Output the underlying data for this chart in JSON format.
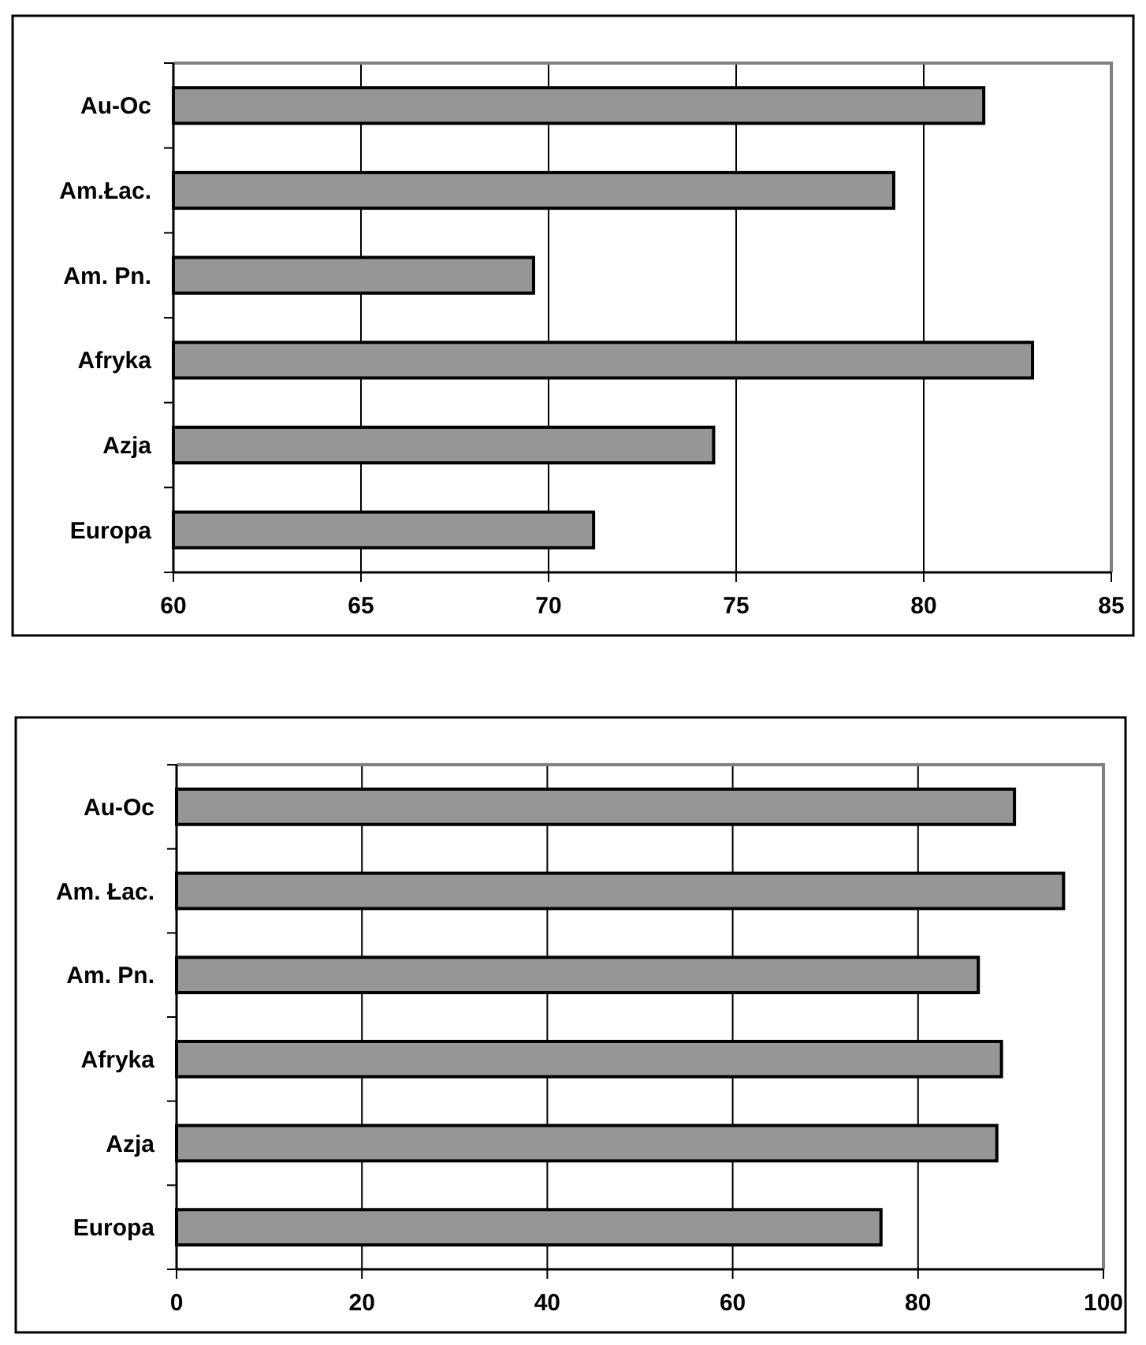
{
  "chart_data": [
    {
      "type": "bar",
      "orientation": "horizontal",
      "categories": [
        "Au-Oc",
        "Am.Łac.",
        "Am. Pn.",
        "Afryka",
        "Azja",
        "Europa"
      ],
      "values": [
        81.6,
        79.2,
        69.6,
        82.9,
        74.4,
        71.2
      ],
      "color": "#969696",
      "xlim": [
        60,
        85
      ],
      "xticks": [
        60,
        65,
        70,
        75,
        80,
        85
      ],
      "grid": "x"
    },
    {
      "type": "bar",
      "orientation": "horizontal",
      "categories": [
        "Au-Oc",
        "Am. Łac.",
        "Am. Pn.",
        "Afryka",
        "Azja",
        "Europa"
      ],
      "values": [
        90.4,
        95.7,
        86.5,
        89.0,
        88.5,
        76.0
      ],
      "color": "#969696",
      "xlim": [
        0,
        100
      ],
      "xticks": [
        0,
        20,
        40,
        60,
        80,
        100
      ],
      "grid": "x"
    }
  ]
}
